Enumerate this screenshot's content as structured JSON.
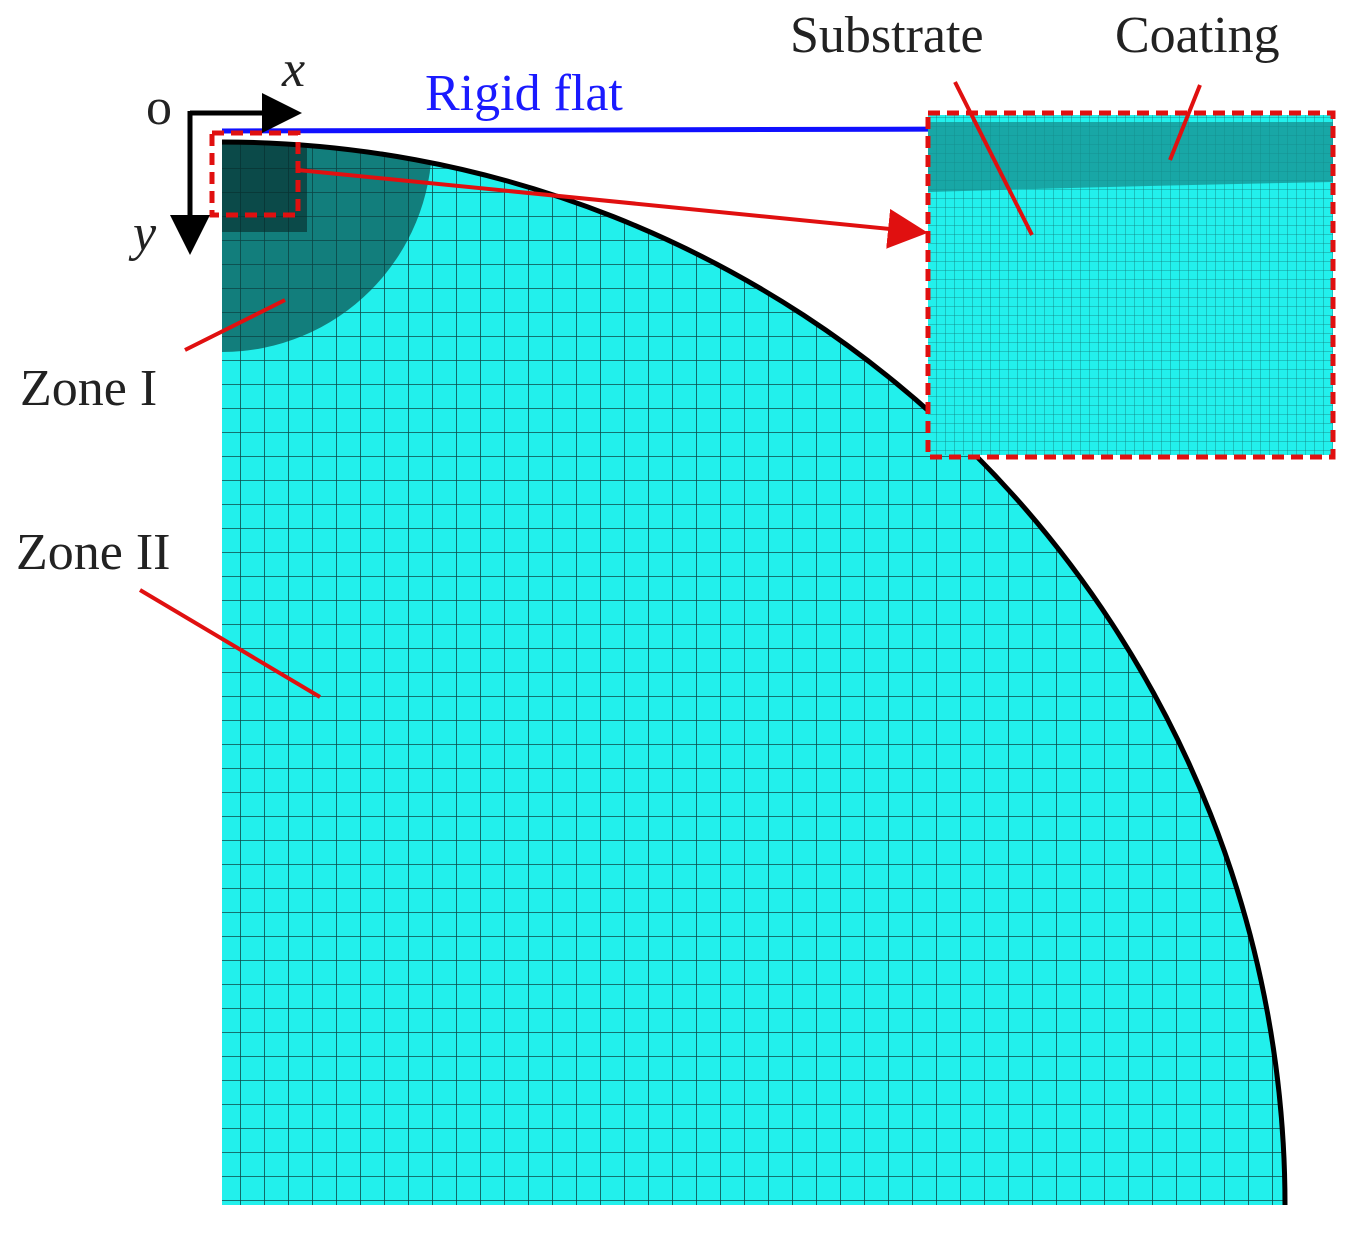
{
  "axes": {
    "origin": "o",
    "x": "x",
    "y": "y"
  },
  "labels": {
    "rigid_flat": "Rigid flat",
    "substrate": "Substrate",
    "coating": "Coating",
    "zone_1": "Zone I",
    "zone_2": "Zone II"
  }
}
